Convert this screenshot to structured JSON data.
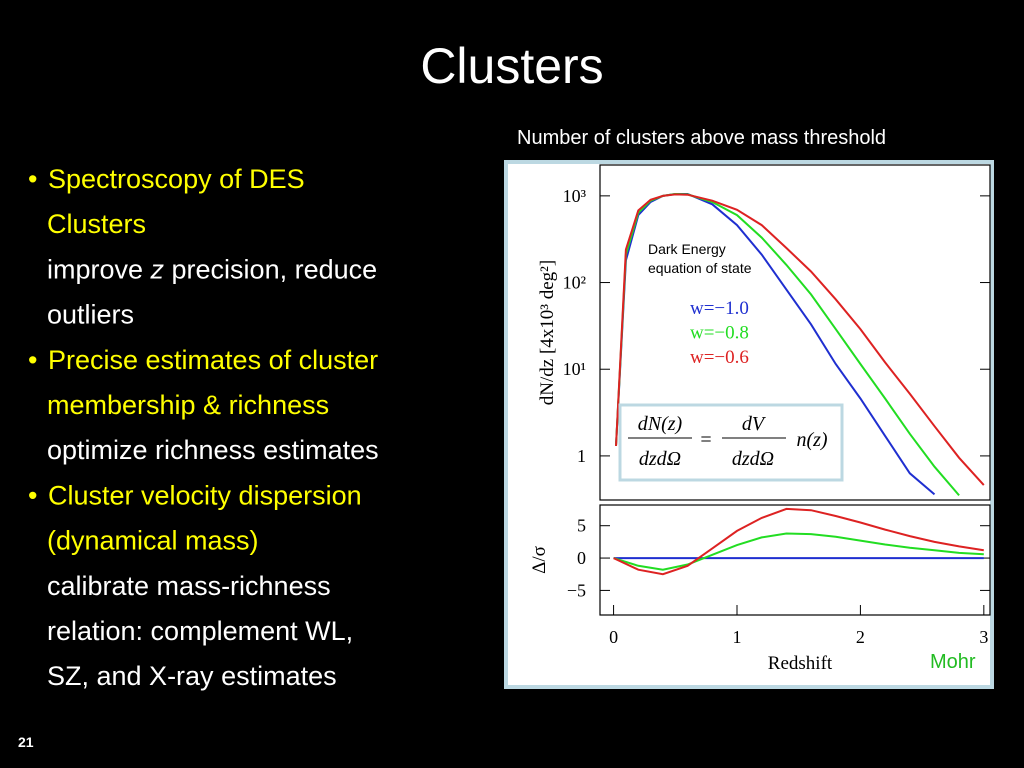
{
  "title": "Clusters",
  "bullets": [
    {
      "heading": [
        "Spectroscopy of DES",
        "Clusters"
      ],
      "details": [
        [
          {
            "text": "improve "
          },
          {
            "text": "z",
            "italic": true
          },
          {
            "text": " precision, reduce"
          }
        ],
        "outliers"
      ]
    },
    {
      "heading": [
        "Precise estimates of cluster",
        "membership & richness"
      ],
      "details": [
        "optimize richness estimates"
      ]
    },
    {
      "heading": [
        "Cluster velocity dispersion",
        "(dynamical mass)"
      ],
      "details": [
        "calibrate mass-richness",
        "relation: complement WL,",
        "SZ, and X-ray estimates"
      ]
    }
  ],
  "figure_caption": "Number of clusters above mass threshold",
  "credit": "Mohr",
  "page_number": "21",
  "chart_data": [
    {
      "type": "line",
      "log_y": true,
      "ylabel": "dN/dz [4x10³ deg²]",
      "annotation": [
        "Dark Energy",
        "equation of state"
      ],
      "formula": {
        "lhs_num": "dN(z)",
        "lhs_den": "dzdΩ",
        "equals": "=",
        "rhs_num": "dV",
        "rhs_den": "dzdΩ",
        "factor": "n(z)"
      },
      "x": [
        0.02,
        0.1,
        0.2,
        0.3,
        0.4,
        0.5,
        0.6,
        0.8,
        1.0,
        1.2,
        1.4,
        1.6,
        1.8,
        2.0,
        2.2,
        2.4,
        2.6,
        2.8,
        3.0
      ],
      "series": [
        {
          "name": "w=−1.0",
          "color": "#1f2fd0",
          "values": [
            1.3,
            180,
            600,
            850,
            1000,
            1050,
            1050,
            800,
            460,
            210,
            83,
            33,
            11.5,
            4.6,
            1.7,
            0.63,
            0.36,
            null,
            null
          ]
        },
        {
          "name": "w=−0.8",
          "color": "#22dd22",
          "values": [
            1.3,
            210,
            640,
            880,
            1000,
            1050,
            1040,
            850,
            600,
            330,
            160,
            73,
            29,
            11.5,
            4.6,
            1.8,
            0.75,
            0.35,
            null
          ]
        },
        {
          "name": "w=−0.6",
          "color": "#dd2222",
          "values": [
            1.3,
            240,
            680,
            900,
            1000,
            1040,
            1030,
            880,
            690,
            460,
            250,
            134,
            64,
            29,
            12,
            5.2,
            2.2,
            0.95,
            0.46
          ]
        }
      ],
      "xlim": [
        -0.11,
        3.05
      ],
      "ylim": [
        0.31,
        2270
      ],
      "yticks": [
        {
          "value": 1000,
          "label": "10³"
        },
        {
          "value": 100,
          "label": "10²"
        },
        {
          "value": 10,
          "label": "10¹"
        },
        1
      ]
    },
    {
      "type": "line",
      "ylabel": "Δ/σ",
      "xlabel": "Redshift",
      "x": [
        0,
        0.2,
        0.4,
        0.6,
        0.8,
        1.0,
        1.2,
        1.4,
        1.6,
        1.8,
        2.0,
        2.2,
        2.4,
        2.6,
        2.8,
        3.0
      ],
      "series": [
        {
          "color": "#1f2fd0",
          "values": [
            0,
            0,
            0,
            0,
            0,
            0,
            0,
            0,
            0,
            0,
            0,
            0,
            0,
            0,
            0,
            0
          ]
        },
        {
          "color": "#22dd22",
          "values": [
            0,
            -1.2,
            -1.8,
            -1.0,
            0.5,
            2.0,
            3.2,
            3.8,
            3.7,
            3.3,
            2.7,
            2.1,
            1.6,
            1.2,
            0.8,
            0.6
          ]
        },
        {
          "color": "#dd2222",
          "values": [
            0,
            -1.8,
            -2.5,
            -1.2,
            1.5,
            4.2,
            6.2,
            7.6,
            7.4,
            6.5,
            5.5,
            4.4,
            3.4,
            2.5,
            1.8,
            1.2
          ]
        }
      ],
      "xlim": [
        -0.11,
        3.05
      ],
      "ylim": [
        -8.8,
        8.2
      ],
      "xticks": [
        0,
        1,
        2,
        3
      ],
      "yticks": [
        5,
        0,
        {
          "value": -5,
          "label": "−5"
        }
      ]
    }
  ]
}
